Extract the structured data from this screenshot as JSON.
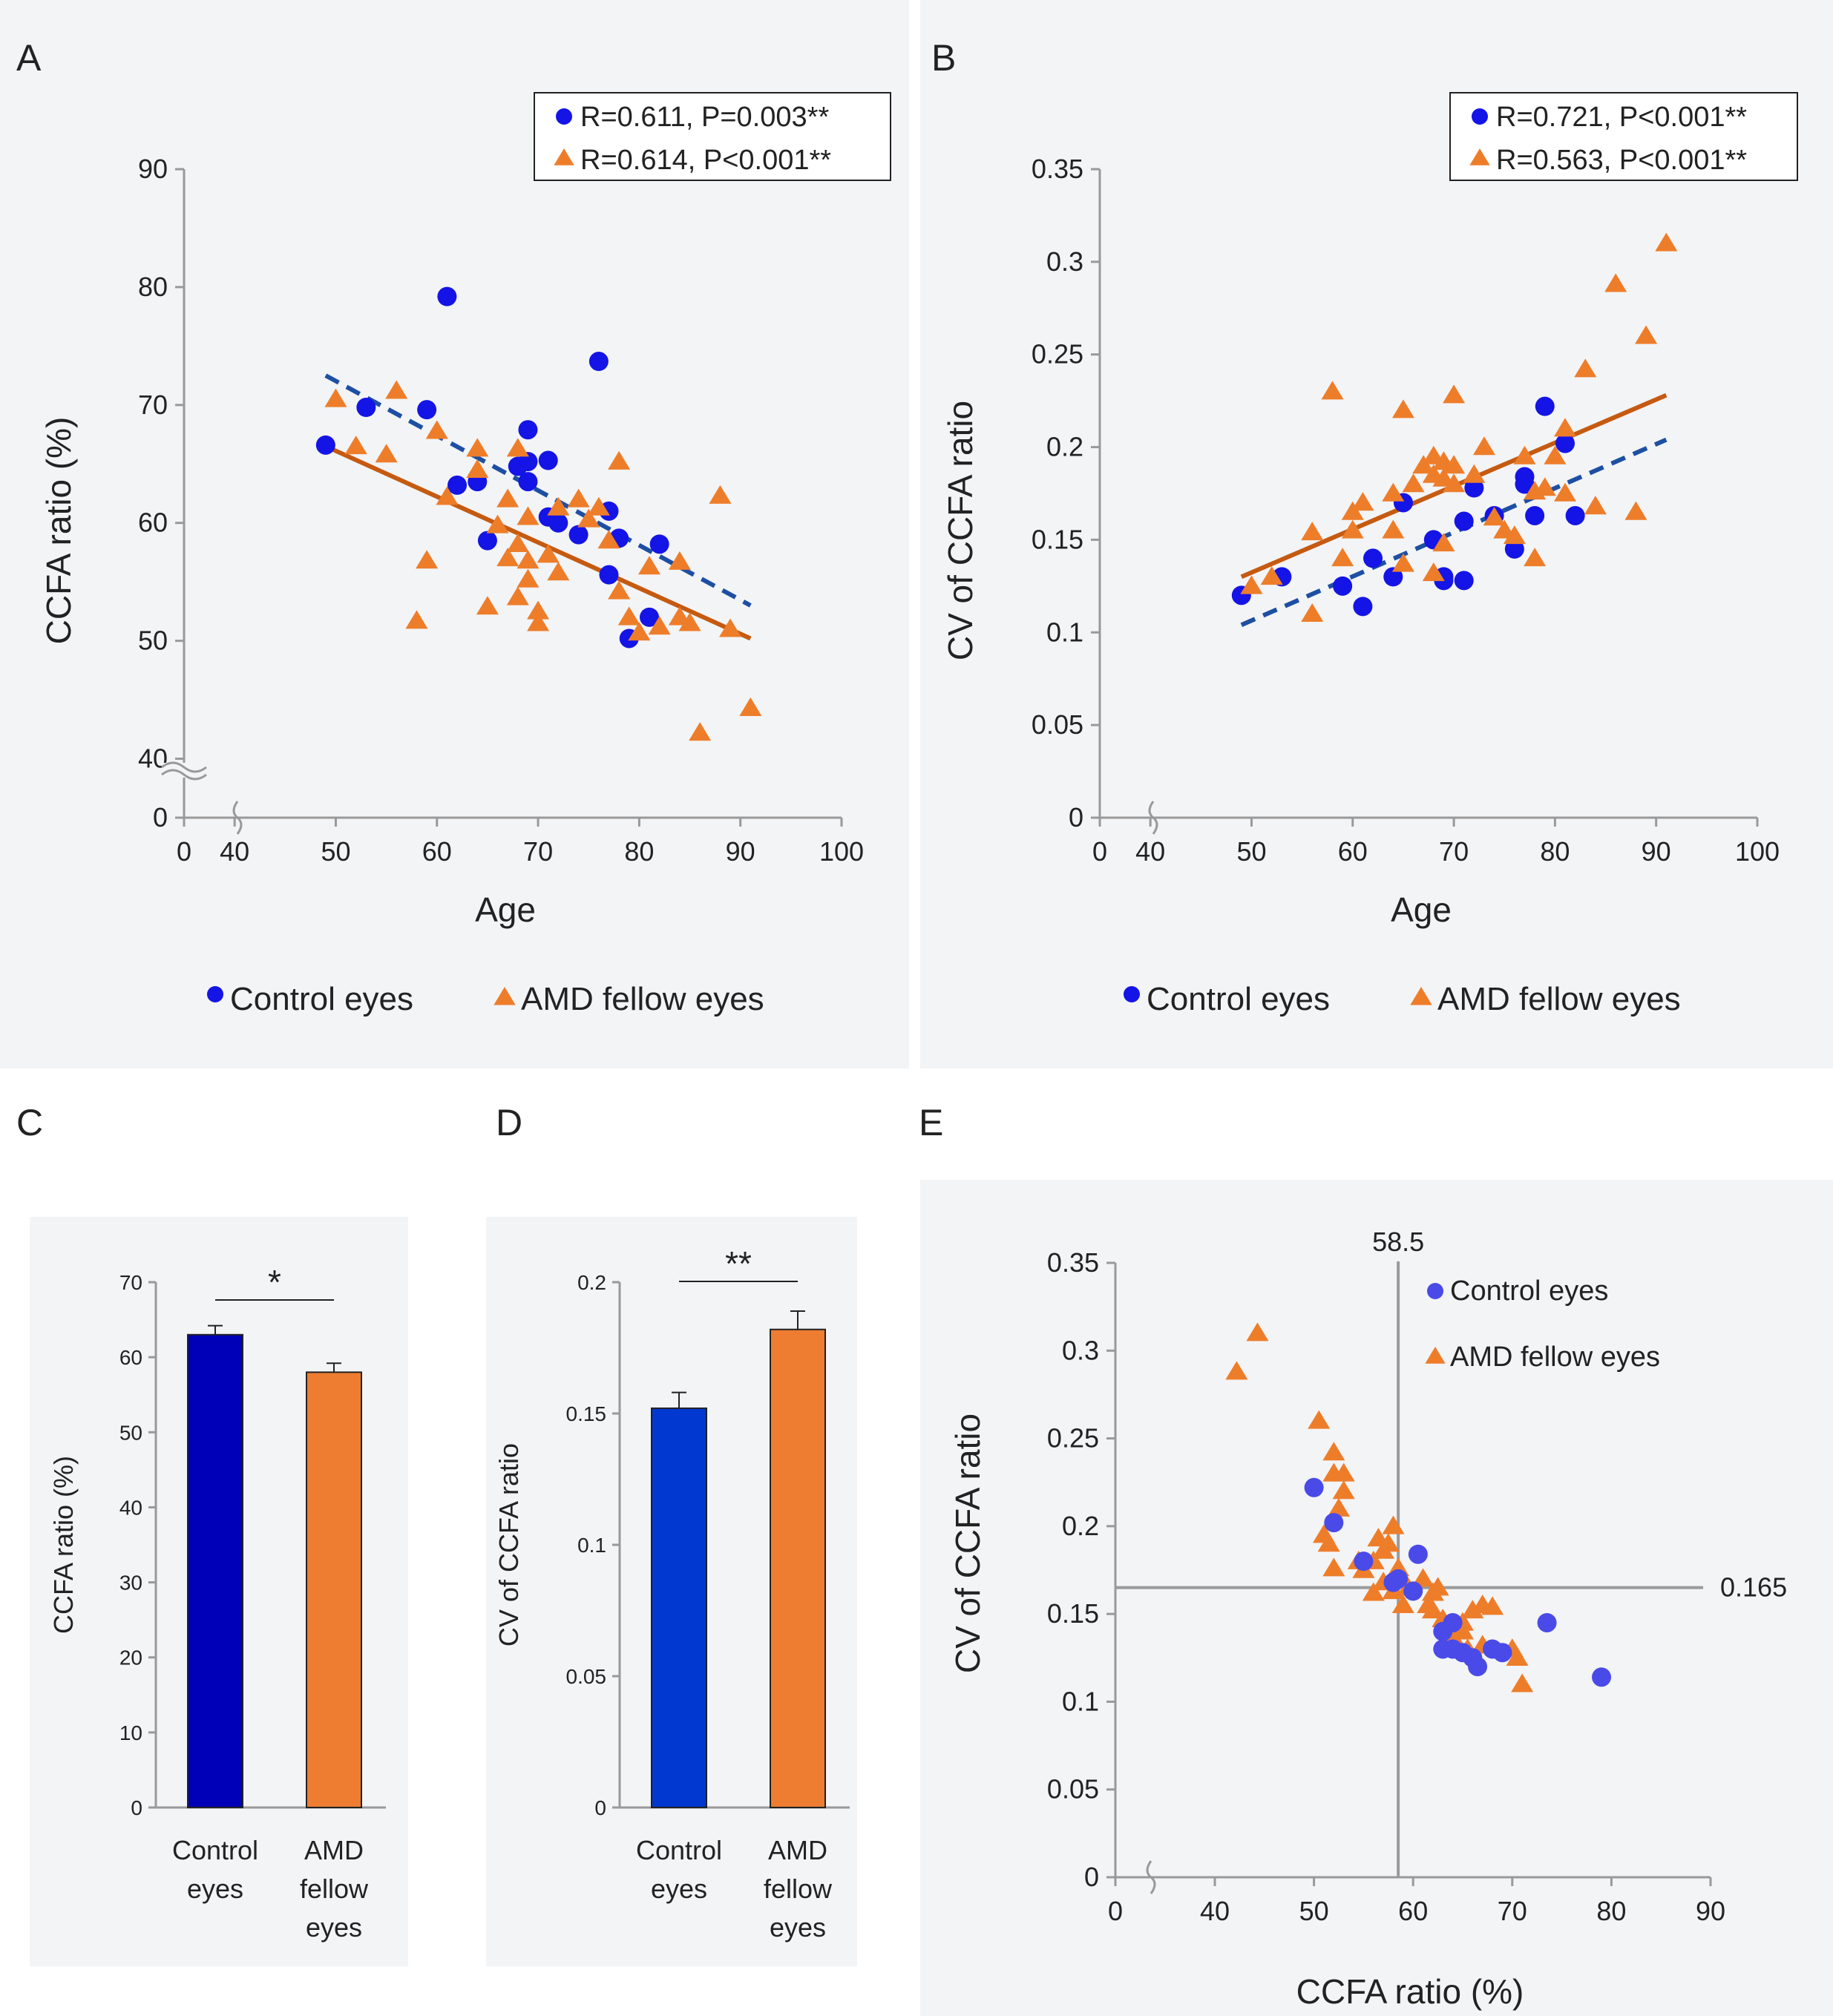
{
  "colors": {
    "control": "#1414e6",
    "amd": "#ee7d2a",
    "control_line": "#1d4fa3",
    "amd_line": "#c55a11",
    "bar_control_C": "#0000b8",
    "bar_control_D": "#0038d0",
    "bar_amd": "#ee7d31",
    "refline": "#9a9a9a"
  },
  "chart_data": [
    {
      "panel": "A",
      "type": "scatter",
      "xlabel": "Age",
      "ylabel": "CCFA ratio (%)",
      "x_ticks": [
        "0",
        "40",
        "50",
        "60",
        "70",
        "80",
        "90",
        "100"
      ],
      "y_ticks": [
        "0",
        "40",
        "50",
        "60",
        "70",
        "80",
        "90"
      ],
      "xlim": [
        35,
        100
      ],
      "ylim": [
        35,
        90
      ],
      "axis_break": true,
      "stats_legend": [
        "R=0.611, P=0.003**",
        "R=0.614, P<0.001**"
      ],
      "bottom_legend": [
        "Control eyes",
        "AMD fellow eyes"
      ],
      "series": [
        {
          "name": "Control eyes",
          "marker": "circle",
          "points": [
            [
              49,
              66.6
            ],
            [
              53,
              69.8
            ],
            [
              59,
              69.6
            ],
            [
              61,
              79.2
            ],
            [
              62,
              63.2
            ],
            [
              64,
              63.5
            ],
            [
              65,
              58.5
            ],
            [
              68,
              64.8
            ],
            [
              69,
              65.2
            ],
            [
              69,
              63.5
            ],
            [
              69,
              67.9
            ],
            [
              71,
              65.3
            ],
            [
              71,
              60.5
            ],
            [
              72,
              60.0
            ],
            [
              74,
              59.0
            ],
            [
              76,
              73.7
            ],
            [
              77,
              61.0
            ],
            [
              77,
              55.6
            ],
            [
              78,
              58.7
            ],
            [
              79,
              50.2
            ],
            [
              81,
              52.0
            ],
            [
              82,
              58.2
            ]
          ],
          "fit": {
            "x": [
              49,
              91
            ],
            "y": [
              72.5,
              53.0
            ],
            "dash": true
          }
        },
        {
          "name": "AMD fellow eyes",
          "marker": "triangle",
          "points": [
            [
              50,
              70.5
            ],
            [
              52,
              66.5
            ],
            [
              55,
              65.8
            ],
            [
              56,
              71.2
            ],
            [
              58,
              51.7
            ],
            [
              59,
              56.8
            ],
            [
              60,
              67.8
            ],
            [
              61,
              62.2
            ],
            [
              64,
              66.3
            ],
            [
              64,
              64.5
            ],
            [
              65,
              52.9
            ],
            [
              66,
              59.8
            ],
            [
              67,
              62.0
            ],
            [
              67,
              57.0
            ],
            [
              68,
              53.7
            ],
            [
              68,
              66.3
            ],
            [
              68,
              58.2
            ],
            [
              69,
              56.8
            ],
            [
              69,
              55.2
            ],
            [
              69,
              60.5
            ],
            [
              70,
              51.5
            ],
            [
              70,
              52.5
            ],
            [
              71,
              57.3
            ],
            [
              72,
              55.8
            ],
            [
              72,
              61.3
            ],
            [
              74,
              62.0
            ],
            [
              75,
              60.3
            ],
            [
              76,
              61.3
            ],
            [
              77,
              58.5
            ],
            [
              78,
              65.2
            ],
            [
              78,
              54.2
            ],
            [
              79,
              52.0
            ],
            [
              80,
              50.7
            ],
            [
              81,
              56.3
            ],
            [
              82,
              51.2
            ],
            [
              84,
              52.0
            ],
            [
              84,
              56.7
            ],
            [
              85,
              51.5
            ],
            [
              86,
              42.2
            ],
            [
              88,
              62.3
            ],
            [
              89,
              51.0
            ],
            [
              91,
              44.3
            ]
          ],
          "fit": {
            "x": [
              49,
              91
            ],
            "y": [
              66.5,
              50.2
            ],
            "dash": false
          }
        }
      ]
    },
    {
      "panel": "B",
      "type": "scatter",
      "xlabel": "Age",
      "ylabel": "CV of CCFA ratio",
      "x_ticks": [
        "0",
        "40",
        "50",
        "60",
        "70",
        "80",
        "90",
        "100"
      ],
      "y_ticks": [
        "0",
        "0.05",
        "0.1",
        "0.15",
        "0.2",
        "0.25",
        "0.3",
        "0.35"
      ],
      "xlim": [
        35,
        100
      ],
      "ylim": [
        0,
        0.35
      ],
      "axis_break": true,
      "stats_legend": [
        "R=0.721, P<0.001**",
        "R=0.563, P<0.001**"
      ],
      "bottom_legend": [
        "Control eyes",
        "AMD fellow eyes"
      ],
      "series": [
        {
          "name": "Control eyes",
          "marker": "circle",
          "points": [
            [
              49,
              0.12
            ],
            [
              53,
              0.13
            ],
            [
              59,
              0.125
            ],
            [
              61,
              0.114
            ],
            [
              62,
              0.14
            ],
            [
              64,
              0.13
            ],
            [
              65,
              0.17
            ],
            [
              68,
              0.15
            ],
            [
              69,
              0.13
            ],
            [
              69,
              0.128
            ],
            [
              71,
              0.16
            ],
            [
              71,
              0.128
            ],
            [
              72,
              0.178
            ],
            [
              74,
              0.163
            ],
            [
              76,
              0.145
            ],
            [
              77,
              0.18
            ],
            [
              77,
              0.184
            ],
            [
              78,
              0.163
            ],
            [
              79,
              0.222
            ],
            [
              81,
              0.202
            ],
            [
              82,
              0.163
            ]
          ],
          "fit": {
            "x": [
              49,
              91
            ],
            "y": [
              0.104,
              0.204
            ],
            "dash": true
          }
        },
        {
          "name": "AMD fellow eyes",
          "marker": "triangle",
          "points": [
            [
              50,
              0.125
            ],
            [
              52,
              0.13
            ],
            [
              56,
              0.154
            ],
            [
              56,
              0.11
            ],
            [
              58,
              0.23
            ],
            [
              59,
              0.14
            ],
            [
              60,
              0.155
            ],
            [
              60,
              0.165
            ],
            [
              61,
              0.17
            ],
            [
              64,
              0.175
            ],
            [
              64,
              0.155
            ],
            [
              65,
              0.22
            ],
            [
              65,
              0.137
            ],
            [
              66,
              0.18
            ],
            [
              67,
              0.19
            ],
            [
              68,
              0.195
            ],
            [
              68,
              0.185
            ],
            [
              68,
              0.132
            ],
            [
              69,
              0.192
            ],
            [
              69,
              0.148
            ],
            [
              69,
              0.183
            ],
            [
              70,
              0.228
            ],
            [
              70,
              0.18
            ],
            [
              70,
              0.19
            ],
            [
              72,
              0.185
            ],
            [
              73,
              0.2
            ],
            [
              74,
              0.162
            ],
            [
              75,
              0.155
            ],
            [
              76,
              0.152
            ],
            [
              77,
              0.195
            ],
            [
              78,
              0.14
            ],
            [
              78,
              0.176
            ],
            [
              79,
              0.178
            ],
            [
              80,
              0.195
            ],
            [
              81,
              0.21
            ],
            [
              81,
              0.175
            ],
            [
              83,
              0.242
            ],
            [
              84,
              0.168
            ],
            [
              86,
              0.288
            ],
            [
              88,
              0.165
            ],
            [
              89,
              0.26
            ],
            [
              91,
              0.31
            ]
          ],
          "fit": {
            "x": [
              49,
              91
            ],
            "y": [
              0.13,
              0.228
            ],
            "dash": false
          }
        }
      ]
    },
    {
      "panel": "C",
      "type": "bar",
      "ylabel": "CCFA ratio (%)",
      "categories": [
        [
          "Control",
          "eyes"
        ],
        [
          "AMD",
          "fellow",
          "eyes"
        ]
      ],
      "values": [
        63.0,
        58.0
      ],
      "errors": [
        1.2,
        1.2
      ],
      "y_ticks": [
        "0",
        "10",
        "20",
        "30",
        "40",
        "50",
        "60",
        "70"
      ],
      "ylim": [
        0,
        70
      ],
      "significance": "*"
    },
    {
      "panel": "D",
      "type": "bar",
      "ylabel": "CV of CCFA ratio",
      "categories": [
        [
          "Control",
          "eyes"
        ],
        [
          "AMD",
          "fellow",
          "eyes"
        ]
      ],
      "values": [
        0.152,
        0.182
      ],
      "errors": [
        0.006,
        0.007
      ],
      "y_ticks": [
        "0",
        "0.05",
        "0.1",
        "0.15",
        "0.2"
      ],
      "ylim": [
        0,
        0.2
      ],
      "significance": "**"
    },
    {
      "panel": "E",
      "type": "scatter",
      "xlabel": "CCFA ratio (%)",
      "ylabel": "CV of CCFA ratio",
      "x_ticks": [
        "0",
        "40",
        "50",
        "60",
        "70",
        "80",
        "90"
      ],
      "y_ticks": [
        "0",
        "0.05",
        "0.1",
        "0.15",
        "0.2",
        "0.25",
        "0.3",
        "0.35"
      ],
      "xlim": [
        30,
        90
      ],
      "ylim": [
        0,
        0.35
      ],
      "axis_break": true,
      "ref_lines": {
        "x": 58.5,
        "x_label": "58.5",
        "y": 0.165,
        "y_label": "0.165"
      },
      "legend": [
        "Control eyes",
        "AMD fellow eyes"
      ],
      "series": [
        {
          "name": "Control eyes",
          "marker": "circle",
          "points": [
            [
              50,
              0.222
            ],
            [
              52,
              0.202
            ],
            [
              55,
              0.18
            ],
            [
              58,
              0.168
            ],
            [
              58.5,
              0.17
            ],
            [
              60,
              0.163
            ],
            [
              60.5,
              0.184
            ],
            [
              63,
              0.13
            ],
            [
              63,
              0.14
            ],
            [
              64,
              0.13
            ],
            [
              64,
              0.145
            ],
            [
              65,
              0.128
            ],
            [
              66,
              0.125
            ],
            [
              66.5,
              0.12
            ],
            [
              68,
              0.13
            ],
            [
              69,
              0.128
            ],
            [
              73.5,
              0.145
            ],
            [
              79,
              0.114
            ]
          ]
        },
        {
          "name": "AMD fellow eyes",
          "marker": "triangle",
          "points": [
            [
              42.2,
              0.288
            ],
            [
              44.3,
              0.31
            ],
            [
              50.5,
              0.26
            ],
            [
              51,
              0.195
            ],
            [
              51.5,
              0.19
            ],
            [
              52,
              0.242
            ],
            [
              52,
              0.23
            ],
            [
              52,
              0.176
            ],
            [
              52.5,
              0.21
            ],
            [
              53,
              0.23
            ],
            [
              53,
              0.22
            ],
            [
              55,
              0.175
            ],
            [
              56,
              0.18
            ],
            [
              56.5,
              0.193
            ],
            [
              57,
              0.168
            ],
            [
              57,
              0.186
            ],
            [
              57.5,
              0.19
            ],
            [
              58,
              0.2
            ],
            [
              58,
              0.163
            ],
            [
              58.5,
              0.176
            ],
            [
              59,
              0.155
            ],
            [
              59.5,
              0.165
            ],
            [
              61,
              0.17
            ],
            [
              61.5,
              0.155
            ],
            [
              62,
              0.152
            ],
            [
              62.5,
              0.165
            ],
            [
              63,
              0.147
            ],
            [
              64,
              0.137
            ],
            [
              65,
              0.145
            ],
            [
              65,
              0.14
            ],
            [
              65.5,
              0.13
            ],
            [
              66,
              0.152
            ],
            [
              67,
              0.155
            ],
            [
              67,
              0.132
            ],
            [
              68,
              0.154
            ],
            [
              70,
              0.13
            ],
            [
              70.5,
              0.125
            ],
            [
              71,
              0.11
            ],
            [
              62,
              0.162
            ],
            [
              54.5,
              0.18
            ],
            [
              56,
              0.162
            ]
          ]
        }
      ]
    }
  ]
}
